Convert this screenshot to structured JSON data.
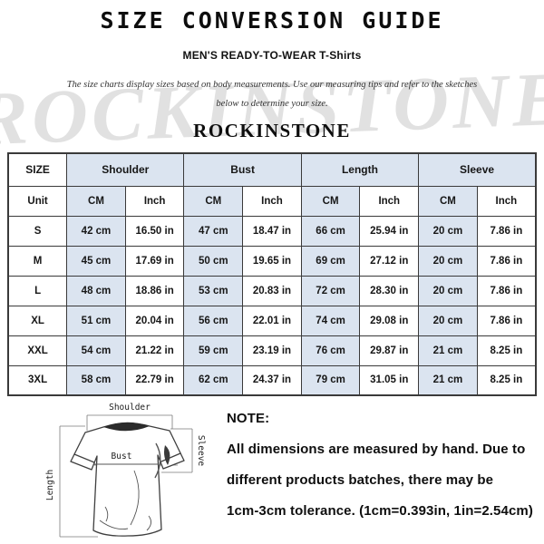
{
  "page": {
    "title": "SIZE CONVERSION GUIDE",
    "subtitle": "MEN'S READY-TO-WEAR T-Shirts",
    "description_line1": "The size charts display sizes based on body measurements. Use our measuring tips and refer to the sketches",
    "description_line2": "below to determine your size.",
    "brand": "ROCKINSTONE",
    "watermark": "ROCKINSTONE"
  },
  "size_table": {
    "corner_label": "SIZE",
    "unit_label": "Unit",
    "groups": [
      "Shoulder",
      "Bust",
      "Length",
      "Sleeve"
    ],
    "units": [
      "CM",
      "Inch",
      "CM",
      "Inch",
      "CM",
      "Inch",
      "CM",
      "Inch"
    ],
    "rows": [
      {
        "size": "S",
        "values": [
          "42 cm",
          "16.50 in",
          "47 cm",
          "18.47 in",
          "66 cm",
          "25.94 in",
          "20 cm",
          "7.86 in"
        ]
      },
      {
        "size": "M",
        "values": [
          "45 cm",
          "17.69 in",
          "50 cm",
          "19.65 in",
          "69 cm",
          "27.12 in",
          "20 cm",
          "7.86 in"
        ]
      },
      {
        "size": "L",
        "values": [
          "48 cm",
          "18.86 in",
          "53 cm",
          "20.83 in",
          "72 cm",
          "28.30 in",
          "20 cm",
          "7.86 in"
        ]
      },
      {
        "size": "XL",
        "values": [
          "51 cm",
          "20.04 in",
          "56 cm",
          "22.01 in",
          "74 cm",
          "29.08 in",
          "20 cm",
          "7.86 in"
        ]
      },
      {
        "size": "XXL",
        "values": [
          "54 cm",
          "21.22 in",
          "59 cm",
          "23.19 in",
          "76 cm",
          "29.87 in",
          "21 cm",
          "8.25 in"
        ]
      },
      {
        "size": "3XL",
        "values": [
          "58 cm",
          "22.79 in",
          "62 cm",
          "24.37 in",
          "79 cm",
          "31.05 in",
          "21 cm",
          "8.25 in"
        ]
      }
    ]
  },
  "diagram": {
    "shoulder_label": "Shoulder",
    "bust_label": "Bust",
    "sleeve_label": "Sleeve",
    "length_label": "Length"
  },
  "note": {
    "heading": "NOTE:",
    "line1": "All dimensions are measured by hand. Due to",
    "line2": "different products batches, there may be",
    "line3": "1cm-3cm tolerance. (1cm=0.393in, 1in=2.54cm)"
  },
  "colors": {
    "cell_blue": "#dbe4f0",
    "table_border": "#3a3a3a",
    "watermark_gray": "#d9d9d9"
  }
}
